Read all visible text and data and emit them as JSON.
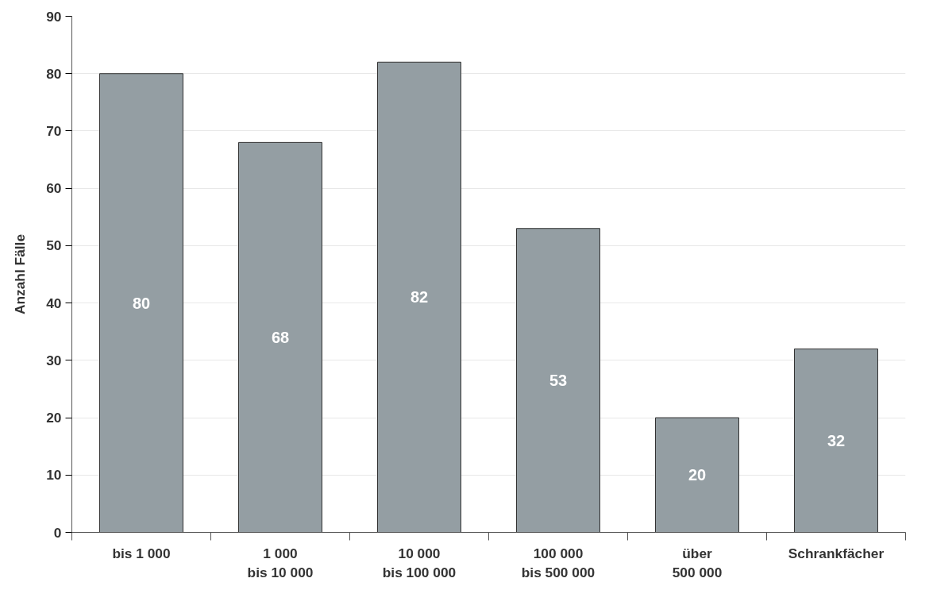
{
  "chart_data": {
    "type": "bar",
    "ylabel": "Anzahl Fälle",
    "categories": [
      "bis 1 000",
      "1 000\nbis 10 000",
      "10 000\nbis 100 000",
      "100 000\nbis 500 000",
      "über\n500 000",
      "Schrankfächer"
    ],
    "values": [
      80,
      68,
      82,
      53,
      20,
      32
    ],
    "color": "#949ea3",
    "ylim": [
      0,
      90
    ],
    "yticks": [
      0,
      10,
      20,
      30,
      40,
      50,
      60,
      70,
      80,
      90
    ],
    "grid": "y",
    "data_labels": true
  }
}
